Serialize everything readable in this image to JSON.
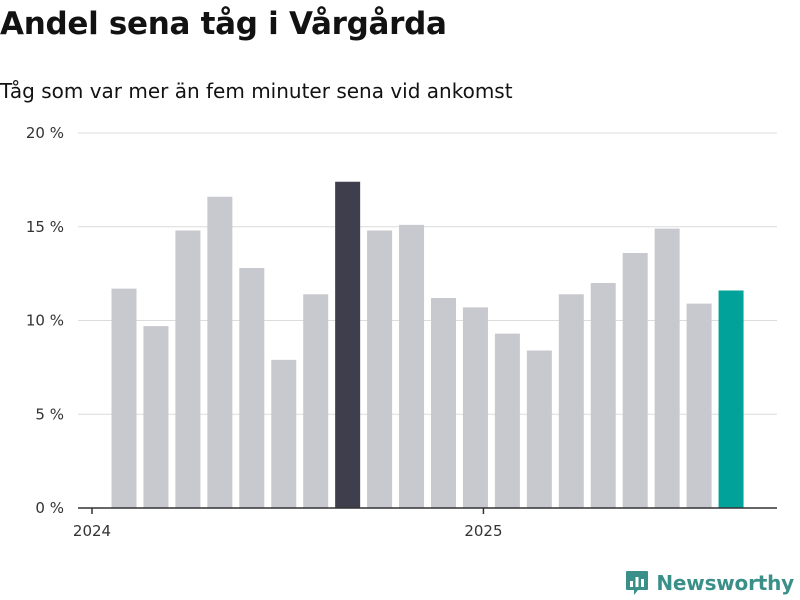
{
  "title": "Andel sena tåg i Vårgårda",
  "subtitle": "Tåg som var mer än fem minuter sena vid ankomst",
  "brand": {
    "name": "Newsworthy",
    "icon": "newsworthy-logo-icon"
  },
  "colors": {
    "bar_default": "#c8c8cf",
    "bar_highlight_max": "#3e3e4c",
    "bar_latest": "#00a29a",
    "grid": "#dcdcdc",
    "axis": "#333333",
    "brand": "#3a8f88"
  },
  "chart_data": {
    "type": "bar",
    "title": "Andel sena tåg i Vårgårda",
    "subtitle": "Tåg som var mer än fem minuter sena vid ankomst",
    "xlabel": "",
    "ylabel": "",
    "ylim": [
      0,
      20
    ],
    "yticks": [
      0,
      5,
      10,
      15,
      20
    ],
    "ytick_labels": [
      "0 %",
      "5 %",
      "10 %",
      "15 %",
      "20 %"
    ],
    "x_tick_labels": [
      {
        "label": "2024",
        "index": -0.5
      },
      {
        "label": "2025",
        "index": 11.5
      }
    ],
    "grid": true,
    "categories": [
      "2024-01",
      "2024-02",
      "2024-03",
      "2024-04",
      "2024-05",
      "2024-06",
      "2024-07",
      "2024-08",
      "2024-09",
      "2024-10",
      "2024-11",
      "2024-12",
      "2025-01",
      "2025-02",
      "2025-03",
      "2025-04",
      "2025-05",
      "2025-06",
      "2025-07",
      "2025-08"
    ],
    "values": [
      11.7,
      9.7,
      14.8,
      16.6,
      12.8,
      7.9,
      11.4,
      17.4,
      14.8,
      15.1,
      11.2,
      10.7,
      9.3,
      8.4,
      11.4,
      12.0,
      13.6,
      14.9,
      10.9,
      11.6
    ],
    "highlight_max_index": 7,
    "highlight_latest_index": 19
  }
}
